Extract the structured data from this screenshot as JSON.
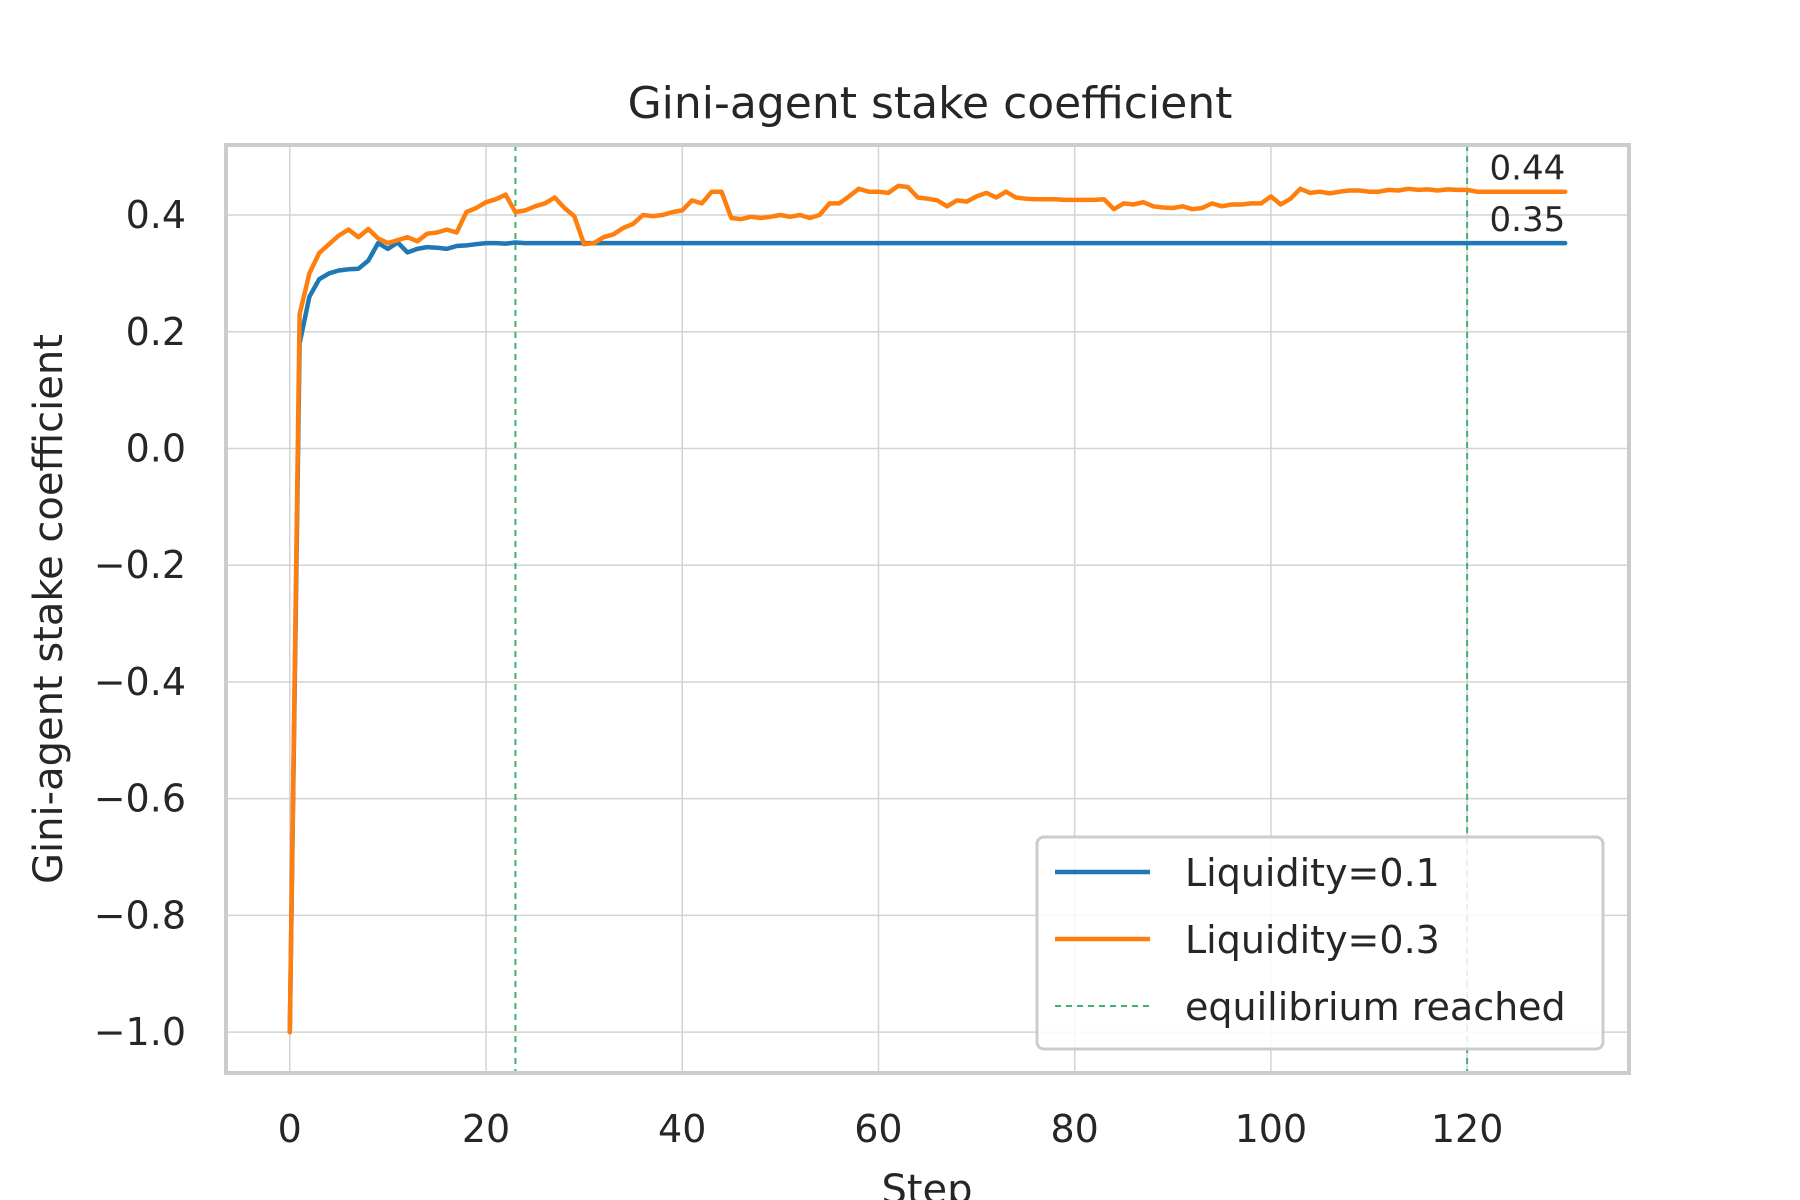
{
  "chart_data": {
    "type": "line",
    "title": "Gini-agent stake coefficient",
    "xlabel": "Step",
    "ylabel": "Gini-agent stake coefficient",
    "xlim": [
      -6.5,
      136.5
    ],
    "ylim": [
      -1.07,
      0.52
    ],
    "x_ticks": [
      0,
      20,
      40,
      60,
      80,
      100,
      120
    ],
    "x_tick_labels": [
      "0",
      "20",
      "40",
      "60",
      "80",
      "100",
      "120"
    ],
    "y_ticks": [
      0.4,
      0.2,
      0.0,
      -0.2,
      -0.4,
      -0.6,
      -0.8,
      -1.0
    ],
    "y_tick_labels": [
      "0.4",
      "0.2",
      "0.0",
      "−0.2",
      "−0.4",
      "−0.6",
      "−0.8",
      "−1.0"
    ],
    "grid": true,
    "legend_position": "lower right",
    "series": [
      {
        "name": "Liquidity=0.1",
        "color": "#1f77b4",
        "x": [
          0,
          1,
          2,
          3,
          4,
          5,
          6,
          7,
          8,
          9,
          10,
          11,
          12,
          13,
          14,
          15,
          16,
          17,
          18,
          19,
          20,
          21,
          22,
          23,
          24,
          25,
          26,
          27,
          28,
          29,
          30,
          40,
          50,
          60,
          70,
          80,
          90,
          100,
          110,
          120,
          130
        ],
        "y": [
          -1.0,
          0.18,
          0.26,
          0.29,
          0.3,
          0.305,
          0.307,
          0.308,
          0.322,
          0.352,
          0.342,
          0.353,
          0.336,
          0.342,
          0.345,
          0.344,
          0.342,
          0.347,
          0.348,
          0.35,
          0.352,
          0.352,
          0.351,
          0.353,
          0.352,
          0.352,
          0.352,
          0.352,
          0.352,
          0.352,
          0.352,
          0.352,
          0.352,
          0.352,
          0.352,
          0.352,
          0.352,
          0.352,
          0.352,
          0.352,
          0.352
        ]
      },
      {
        "name": "Liquidity=0.3",
        "color": "#ff7f0e",
        "x": [
          0,
          1,
          2,
          3,
          4,
          5,
          6,
          7,
          8,
          9,
          10,
          11,
          12,
          13,
          14,
          15,
          16,
          17,
          18,
          19,
          20,
          21,
          22,
          23,
          24,
          25,
          26,
          27,
          28,
          29,
          30,
          31,
          32,
          33,
          34,
          35,
          36,
          37,
          38,
          39,
          40,
          41,
          42,
          43,
          44,
          45,
          46,
          47,
          48,
          49,
          50,
          51,
          52,
          53,
          54,
          55,
          56,
          57,
          58,
          59,
          60,
          61,
          62,
          63,
          64,
          65,
          66,
          67,
          68,
          69,
          70,
          71,
          72,
          73,
          74,
          75,
          76,
          77,
          78,
          79,
          80,
          81,
          82,
          83,
          84,
          85,
          86,
          87,
          88,
          89,
          90,
          91,
          92,
          93,
          94,
          95,
          96,
          97,
          98,
          99,
          100,
          101,
          102,
          103,
          104,
          105,
          106,
          107,
          108,
          109,
          110,
          111,
          112,
          113,
          114,
          115,
          116,
          117,
          118,
          119,
          120,
          121,
          122,
          123,
          124,
          125,
          126,
          127,
          128,
          129,
          130
        ],
        "y": [
          -1.0,
          0.23,
          0.3,
          0.335,
          0.35,
          0.365,
          0.375,
          0.362,
          0.376,
          0.36,
          0.352,
          0.357,
          0.362,
          0.355,
          0.368,
          0.37,
          0.375,
          0.37,
          0.405,
          0.412,
          0.422,
          0.427,
          0.435,
          0.405,
          0.408,
          0.415,
          0.42,
          0.43,
          0.412,
          0.398,
          0.35,
          0.352,
          0.362,
          0.367,
          0.378,
          0.385,
          0.4,
          0.398,
          0.4,
          0.405,
          0.408,
          0.425,
          0.42,
          0.44,
          0.44,
          0.395,
          0.393,
          0.397,
          0.395,
          0.397,
          0.4,
          0.397,
          0.4,
          0.395,
          0.4,
          0.42,
          0.42,
          0.432,
          0.445,
          0.44,
          0.44,
          0.438,
          0.45,
          0.448,
          0.43,
          0.428,
          0.425,
          0.415,
          0.425,
          0.423,
          0.432,
          0.438,
          0.43,
          0.44,
          0.43,
          0.428,
          0.427,
          0.427,
          0.427,
          0.426,
          0.426,
          0.426,
          0.426,
          0.427,
          0.41,
          0.42,
          0.418,
          0.422,
          0.415,
          0.413,
          0.412,
          0.415,
          0.41,
          0.412,
          0.42,
          0.415,
          0.418,
          0.418,
          0.42,
          0.42,
          0.432,
          0.418,
          0.428,
          0.445,
          0.438,
          0.44,
          0.437,
          0.44,
          0.442,
          0.442,
          0.44,
          0.44,
          0.443,
          0.442,
          0.445,
          0.443,
          0.444,
          0.442,
          0.444,
          0.443,
          0.443,
          0.44,
          0.44,
          0.44,
          0.44,
          0.44,
          0.44,
          0.44,
          0.44,
          0.44,
          0.44
        ]
      }
    ],
    "reference_lines": {
      "name": "equilibrium reached",
      "color": "#3cb371",
      "style": "dashed",
      "x": [
        23,
        120
      ]
    },
    "end_labels": [
      {
        "text": "0.44",
        "x": 130,
        "y": 0.44
      },
      {
        "text": "0.35",
        "x": 130,
        "y": 0.352
      }
    ]
  }
}
